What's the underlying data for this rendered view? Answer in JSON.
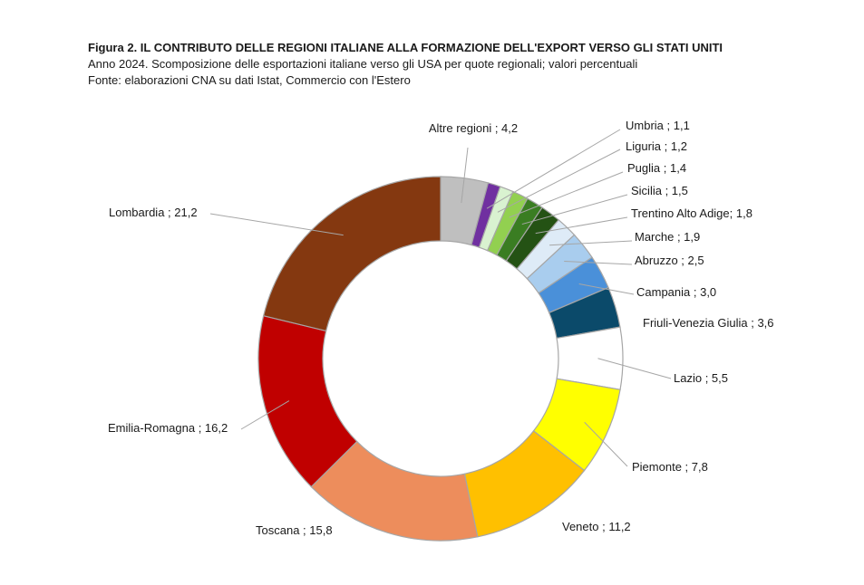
{
  "header": {
    "title": "Figura 2. IL CONTRIBUTO DELLE REGIONI ITALIANE ALLA FORMAZIONE DELL'EXPORT VERSO GLI STATI UNITI",
    "subtitle": "Anno 2024. Scomposizione delle esportazioni italiane verso gli USA per quote regionali; valori percentuali",
    "source": "Fonte: elaborazioni CNA su dati Istat, Commercio con l'Estero"
  },
  "chart_data": {
    "type": "pie",
    "style": "donut",
    "unit": "%",
    "slices": [
      {
        "label": "Altre regioni",
        "value": 4.2,
        "display": "4,2",
        "color": "#bfbfbf"
      },
      {
        "label": "Umbria",
        "value": 1.1,
        "display": "1,1",
        "color": "#7030a0"
      },
      {
        "label": "Liguria",
        "value": 1.2,
        "display": "1,2",
        "color": "#d9f2d0"
      },
      {
        "label": "Puglia",
        "value": 1.4,
        "display": "1,4",
        "color": "#92d050"
      },
      {
        "label": "Sicilia",
        "value": 1.5,
        "display": "1,5",
        "color": "#3a7d22"
      },
      {
        "label": "Trentino Alto Adige",
        "value": 1.8,
        "display": "1,8",
        "color": "#245214"
      },
      {
        "label": "Marche",
        "value": 1.9,
        "display": "1,9",
        "color": "#deebf7"
      },
      {
        "label": "Abruzzo",
        "value": 2.5,
        "display": "2,5",
        "color": "#a9cdee"
      },
      {
        "label": "Campania",
        "value": 3.0,
        "display": "3,0",
        "color": "#4a90d9"
      },
      {
        "label": "Friuli-Venezia Giulia",
        "value": 3.6,
        "display": "3,6",
        "color": "#0b4a6a"
      },
      {
        "label": "Lazio",
        "value": 5.5,
        "display": "5,5",
        "color": "#ffffff"
      },
      {
        "label": "Piemonte",
        "value": 7.8,
        "display": "7,8",
        "color": "#ffff00"
      },
      {
        "label": "Veneto",
        "value": 11.2,
        "display": "11,2",
        "color": "#ffc000"
      },
      {
        "label": "Toscana",
        "value": 15.8,
        "display": "15,8",
        "color": "#ed8d5c"
      },
      {
        "label": "Emilia-Romagna",
        "value": 16.2,
        "display": "16,2",
        "color": "#c00000"
      },
      {
        "label": "Lombardia",
        "value": 21.2,
        "display": "21,2",
        "color": "#843810"
      }
    ],
    "label_text": [
      "Altre regioni ; 4,2",
      "Umbria ; 1,1",
      "Liguria ; 1,2",
      "Puglia ; 1,4",
      "Sicilia ; 1,5",
      "Trentino Alto Adige; 1,8",
      "Marche ; 1,9",
      "Abruzzo ; 2,5",
      "Campania ; 3,0",
      "Friuli-Venezia Giulia ; 3,6",
      "Lazio ; 5,5",
      "Piemonte ; 7,8",
      "Veneto ; 11,2",
      "Toscana ; 15,8",
      "Emilia-Romagna ; 16,2",
      "Lombardia ; 21,2"
    ]
  }
}
